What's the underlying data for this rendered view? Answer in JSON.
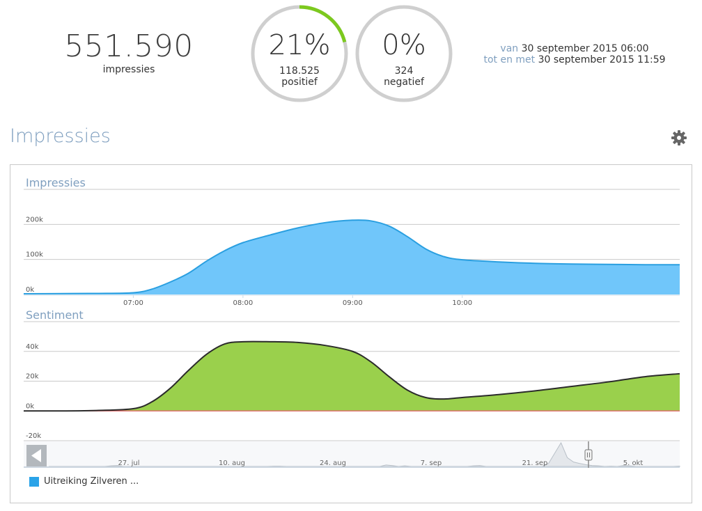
{
  "summary": {
    "total_value": "551.590",
    "total_label": "impressies",
    "positive": {
      "percent": "21%",
      "count": "118.525",
      "label": "positief",
      "fraction": 0.21,
      "color": "#7cc91e"
    },
    "negative": {
      "percent": "0%",
      "count": "324",
      "label": "negatief",
      "fraction": 0.0,
      "color": "#7cc91e"
    },
    "period": {
      "from_label": "van",
      "from_value": "30 september 2015 06:00",
      "to_label": "tot en met",
      "to_value": "30 september 2015 11:59"
    }
  },
  "section": {
    "title": "Impressies",
    "settings_icon": "gear-icon"
  },
  "chart_data": [
    {
      "type": "area",
      "title": "Impressies",
      "color": "#70c6fa",
      "line_color": "#2a9fe0",
      "x_ticks": [
        "07:00",
        "08:00",
        "09:00",
        "10:00"
      ],
      "y_ticks": [
        "0k",
        "100k",
        "200k"
      ],
      "ylim": [
        0,
        300000
      ],
      "x": [
        "06:00",
        "06:20",
        "06:40",
        "07:00",
        "07:10",
        "07:20",
        "07:30",
        "07:40",
        "07:50",
        "08:00",
        "08:15",
        "08:30",
        "08:45",
        "09:00",
        "09:10",
        "09:20",
        "09:30",
        "09:40",
        "09:50",
        "10:00",
        "10:20",
        "10:40",
        "11:00",
        "11:20",
        "11:40",
        "11:59"
      ],
      "values": [
        2000,
        2500,
        3000,
        5000,
        15000,
        35000,
        60000,
        95000,
        125000,
        148000,
        170000,
        190000,
        205000,
        212000,
        210000,
        195000,
        165000,
        130000,
        108000,
        99000,
        93000,
        89000,
        87000,
        86000,
        85000,
        85000
      ]
    },
    {
      "type": "area",
      "title": "Sentiment",
      "series": [
        {
          "name": "positief",
          "color": "#9ad04c",
          "line_color": "#2b2b2b",
          "values": [
            0,
            0,
            300,
            1500,
            6000,
            15000,
            27000,
            38000,
            45000,
            46500,
            46500,
            46000,
            44000,
            40000,
            33000,
            23000,
            14000,
            9000,
            8000,
            9000,
            11000,
            13500,
            16500,
            19500,
            23000,
            25000
          ]
        },
        {
          "name": "negatief",
          "color": "#e07070",
          "values": [
            0,
            0,
            0,
            0,
            0,
            0,
            0,
            0,
            0,
            0,
            0,
            0,
            0,
            0,
            0,
            0,
            0,
            0,
            0,
            0,
            0,
            0,
            0,
            0,
            0,
            0
          ]
        }
      ],
      "y_ticks": [
        "-20k",
        "0k",
        "20k",
        "40k"
      ],
      "ylim": [
        -20000,
        60000
      ]
    },
    {
      "type": "line",
      "title": "",
      "x_ticks": [
        "27. jul",
        "10. aug",
        "24. aug",
        "7. sep",
        "21. sep",
        "5. okt"
      ],
      "values": [
        0,
        0,
        0,
        0,
        0,
        0,
        0,
        0,
        0,
        0,
        0.2,
        0.3,
        0,
        0,
        0,
        0,
        0,
        0,
        0,
        0,
        0,
        0,
        0,
        0,
        0,
        0,
        0,
        0,
        0,
        0,
        0,
        0,
        0,
        0,
        0,
        0,
        0.1,
        0.1,
        0,
        0,
        0,
        0,
        0,
        0,
        0,
        0,
        0,
        0,
        0,
        0,
        0,
        0,
        0,
        0,
        0.5,
        0.3,
        0,
        0.2,
        0,
        0,
        0,
        0,
        0,
        0,
        0,
        0,
        0,
        0,
        0.2,
        0.3,
        0,
        0,
        0,
        0,
        0,
        0,
        0,
        0,
        0,
        0,
        1.0,
        4.5,
        8.0,
        3.0,
        1.5,
        1.0,
        0.6,
        0.3,
        0.2,
        0,
        0.1,
        0,
        0.3,
        0.2,
        0,
        0,
        0,
        0,
        0,
        0,
        0,
        0.1
      ]
    }
  ],
  "navigator": {
    "back_icon": "arrow-left-icon",
    "handle_icon": "drag-handle-icon"
  },
  "legend": {
    "items": [
      {
        "label": "Uitreiking Zilveren ...",
        "color": "#2aa3e8"
      }
    ]
  }
}
